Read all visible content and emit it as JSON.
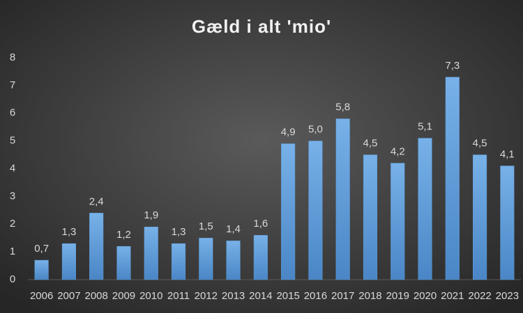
{
  "chart_data": {
    "type": "bar",
    "title": "Gæld i alt 'mio'",
    "categories": [
      "2006",
      "2007",
      "2008",
      "2009",
      "2010",
      "2011",
      "2012",
      "2013",
      "2014",
      "2015",
      "2016",
      "2017",
      "2018",
      "2019",
      "2020",
      "2021",
      "2022",
      "2023"
    ],
    "values": [
      0.7,
      1.3,
      2.4,
      1.2,
      1.9,
      1.3,
      1.5,
      1.4,
      1.6,
      4.9,
      5.0,
      5.8,
      4.5,
      4.2,
      5.1,
      7.3,
      4.5,
      4.1
    ],
    "value_labels": [
      "0,7",
      "1,3",
      "2,4",
      "1,2",
      "1,9",
      "1,3",
      "1,5",
      "1,4",
      "1,6",
      "4,9",
      "5,0",
      "5,8",
      "4,5",
      "4,2",
      "5,1",
      "7,3",
      "4,5",
      "4,1"
    ],
    "color": "#5b9bd5",
    "ylim": [
      0,
      8
    ],
    "yticks": [
      0,
      1,
      2,
      3,
      4,
      5,
      6,
      7,
      8
    ],
    "grid": false
  }
}
